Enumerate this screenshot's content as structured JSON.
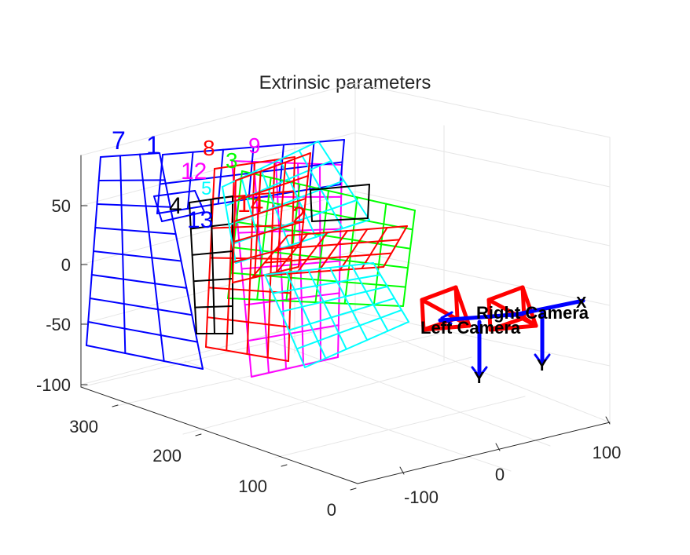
{
  "chart_data": {
    "type": "3d-extrinsic",
    "title": "Extrinsic parameters",
    "axes": {
      "vertical": {
        "ticks": [
          "50",
          "0",
          "-50",
          "-100"
        ]
      },
      "depth": {
        "ticks": [
          "300",
          "200",
          "100",
          "0"
        ]
      },
      "horizontal": {
        "ticks": [
          "100",
          "0",
          "-100"
        ]
      }
    },
    "grid": true,
    "patterns": [
      {
        "label": "7",
        "color": "#0000ff"
      },
      {
        "label": "1",
        "color": "#0000ff"
      },
      {
        "label": "8",
        "color": "#ff0000"
      },
      {
        "label": "9",
        "color": "#ff00ff"
      },
      {
        "label": "12",
        "color": "#ff00ff"
      },
      {
        "label": "3",
        "color": "#00ff00"
      },
      {
        "label": "5",
        "color": "#00ffff"
      },
      {
        "label": "4",
        "color": "#000000"
      },
      {
        "label": "13",
        "color": "#0000ff"
      },
      {
        "label": "14",
        "color": "#ff0000"
      },
      {
        "label": "2",
        "color": "#ff0000"
      }
    ],
    "cameras": [
      {
        "label": "Left Camera",
        "frustum_color": "#ff0000",
        "axes_color": "#0000ff"
      },
      {
        "label": "Right Camera",
        "frustum_color": "#ff0000",
        "axes_color": "#0000ff"
      }
    ],
    "axis_letters": [
      "X",
      "Y",
      "Y"
    ]
  }
}
